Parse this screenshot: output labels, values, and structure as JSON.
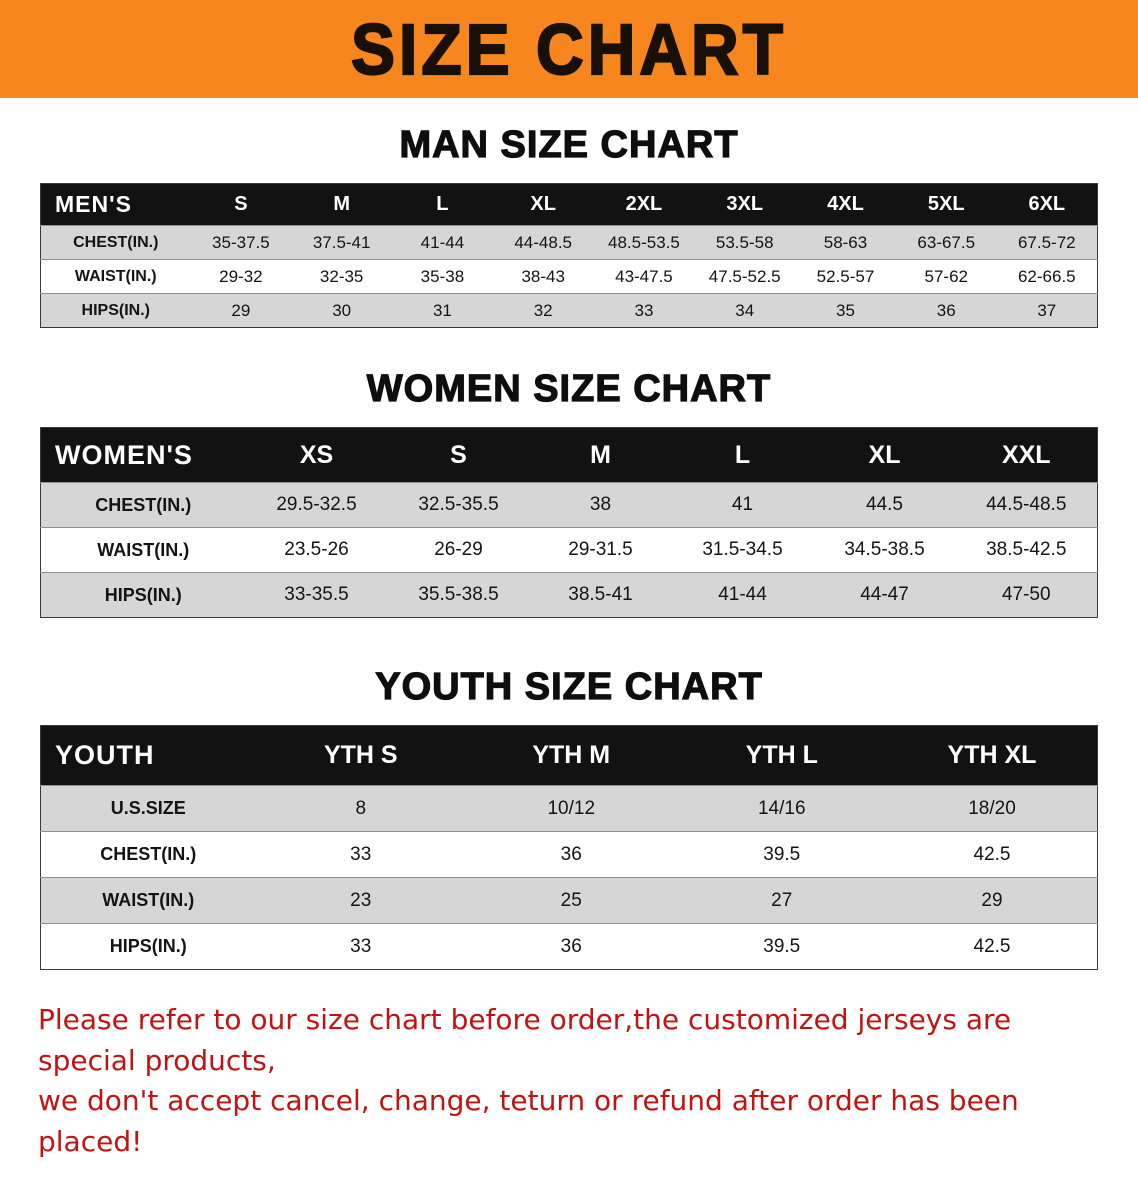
{
  "banner": {
    "title": "SIZE CHART"
  },
  "colors": {
    "banner_bg": "#f6861d",
    "table_header_bg": "#121212",
    "table_header_text": "#ffffff",
    "stripe_row_bg": "#d6d6d6",
    "disclaimer_text": "#c21313"
  },
  "sections": [
    {
      "id": "men",
      "heading": "MAN SIZE CHART",
      "table": {
        "corner": "MEN'S",
        "columns": [
          "S",
          "M",
          "L",
          "XL",
          "2XL",
          "3XL",
          "4XL",
          "5XL",
          "6XL"
        ],
        "rows": [
          {
            "label": "CHEST(IN.)",
            "values": [
              "35-37.5",
              "37.5-41",
              "41-44",
              "44-48.5",
              "48.5-53.5",
              "53.5-58",
              "58-63",
              "63-67.5",
              "67.5-72"
            ]
          },
          {
            "label": "WAIST(IN.)",
            "values": [
              "29-32",
              "32-35",
              "35-38",
              "38-43",
              "43-47.5",
              "47.5-52.5",
              "52.5-57",
              "57-62",
              "62-66.5"
            ]
          },
          {
            "label": "HIPS(IN.)",
            "values": [
              "29",
              "30",
              "31",
              "32",
              "33",
              "34",
              "35",
              "36",
              "37"
            ]
          }
        ]
      }
    },
    {
      "id": "women",
      "heading": "WOMEN SIZE CHART",
      "table": {
        "corner": "WOMEN'S",
        "columns": [
          "XS",
          "S",
          "M",
          "L",
          "XL",
          "XXL"
        ],
        "rows": [
          {
            "label": "CHEST(IN.)",
            "values": [
              "29.5-32.5",
              "32.5-35.5",
              "38",
              "41",
              "44.5",
              "44.5-48.5"
            ]
          },
          {
            "label": "WAIST(IN.)",
            "values": [
              "23.5-26",
              "26-29",
              "29-31.5",
              "31.5-34.5",
              "34.5-38.5",
              "38.5-42.5"
            ]
          },
          {
            "label": "HIPS(IN.)",
            "values": [
              "33-35.5",
              "35.5-38.5",
              "38.5-41",
              "41-44",
              "44-47",
              "47-50"
            ]
          }
        ]
      }
    },
    {
      "id": "youth",
      "heading": "YOUTH SIZE CHART",
      "table": {
        "corner": "YOUTH",
        "columns": [
          "YTH S",
          "YTH M",
          "YTH L",
          "YTH XL"
        ],
        "rows": [
          {
            "label": "U.S.SIZE",
            "values": [
              "8",
              "10/12",
              "14/16",
              "18/20"
            ]
          },
          {
            "label": "CHEST(IN.)",
            "values": [
              "33",
              "36",
              "39.5",
              "42.5"
            ]
          },
          {
            "label": "WAIST(IN.)",
            "values": [
              "23",
              "25",
              "27",
              "29"
            ]
          },
          {
            "label": "HIPS(IN.)",
            "values": [
              "33",
              "36",
              "39.5",
              "42.5"
            ]
          }
        ]
      }
    }
  ],
  "disclaimer": {
    "line1": "Please refer to our size chart before order,the customized jerseys are special products,",
    "line2": "we don't accept cancel, change, teturn or refund after order has been placed!"
  }
}
